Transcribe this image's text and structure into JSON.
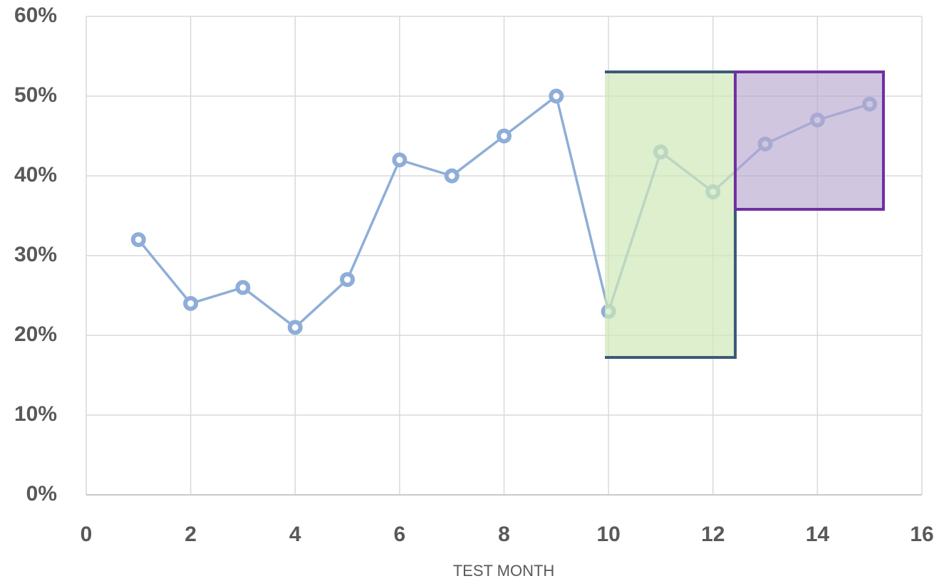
{
  "chart_data": {
    "type": "line",
    "x": [
      1,
      2,
      3,
      4,
      5,
      6,
      7,
      8,
      9,
      10,
      11,
      12,
      13,
      14,
      15
    ],
    "values": [
      32,
      24,
      26,
      21,
      27,
      42,
      40,
      45,
      50,
      23,
      43,
      38,
      44,
      47,
      49
    ],
    "color": "#8eaed8",
    "x_label": "TEST MONTH",
    "xlim": [
      0,
      16
    ],
    "xticks": [
      0,
      2,
      4,
      6,
      8,
      10,
      12,
      14,
      16
    ],
    "ylim": [
      0,
      60
    ],
    "yticks": [
      {
        "value": 0,
        "label": "0%"
      },
      {
        "value": 10,
        "label": "10%"
      },
      {
        "value": 20,
        "label": "20%"
      },
      {
        "value": 30,
        "label": "30%"
      },
      {
        "value": 40,
        "label": "40%"
      },
      {
        "value": 50,
        "label": "50%"
      },
      {
        "value": 60,
        "label": "60%"
      }
    ],
    "grid": true
  }
}
